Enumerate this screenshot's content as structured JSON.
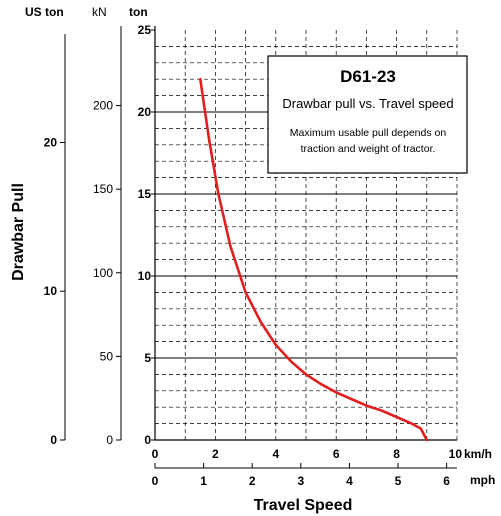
{
  "chart_data": {
    "type": "line",
    "info_box": {
      "title": "D61-23",
      "subtitle": "Drawbar pull vs. Travel speed",
      "note_line1": "Maximum usable pull depends on",
      "note_line2": "traction and weight of tractor."
    },
    "xlabel": "Travel Speed",
    "ylabel": "Drawbar Pull",
    "x_axis_kmh": {
      "unit": "km/h",
      "range": [
        0,
        10
      ],
      "ticks": [
        0,
        2,
        4,
        6,
        8,
        10
      ]
    },
    "x_axis_mph": {
      "unit": "mph",
      "range": [
        0,
        6.2137
      ],
      "ticks": [
        0,
        1,
        2,
        3,
        4,
        5,
        6
      ]
    },
    "y_axis_ton": {
      "unit": "ton",
      "range": [
        0,
        25
      ],
      "ticks": [
        0,
        5,
        10,
        15,
        20,
        25
      ]
    },
    "y_axis_kN": {
      "unit": "kN",
      "range": [
        0,
        245.2
      ],
      "ticks": [
        0,
        50,
        100,
        150,
        200
      ]
    },
    "y_axis_uston": {
      "unit": "US ton",
      "range": [
        0,
        27.56
      ],
      "ticks": [
        0,
        10,
        20
      ]
    },
    "grid": true,
    "series": [
      {
        "color": "#e02020",
        "x": [
          1.5,
          1.8,
          2.1,
          2.5,
          3.0,
          3.5,
          4.0,
          4.5,
          5.0,
          5.5,
          6.0,
          6.5,
          7.0,
          7.5,
          8.0,
          8.5,
          8.8,
          9.0
        ],
        "y": [
          22.0,
          18.2,
          15.0,
          11.8,
          9.0,
          7.2,
          5.8,
          4.8,
          4.0,
          3.4,
          2.9,
          2.5,
          2.1,
          1.8,
          1.4,
          1.0,
          0.7,
          0.0
        ]
      }
    ]
  }
}
